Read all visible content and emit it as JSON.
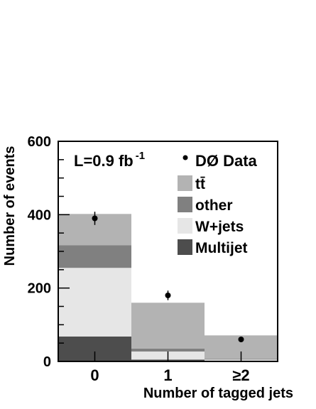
{
  "chart_data": {
    "type": "bar",
    "stacked": true,
    "categories": [
      "0",
      "1",
      "≥2"
    ],
    "xlabel": "Number of tagged jets",
    "ylabel": "Number of events",
    "ylim": [
      0,
      600
    ],
    "yticks": [
      0,
      200,
      400,
      600
    ],
    "series": [
      {
        "name": "Multijet",
        "color": "#4d4d4d",
        "values": [
          68,
          5,
          2
        ]
      },
      {
        "name": "W+jets",
        "color": "#e6e6e6",
        "values": [
          187,
          22,
          3
        ]
      },
      {
        "name": "other",
        "color": "#808080",
        "values": [
          62,
          8,
          2
        ]
      },
      {
        "name": "tt̄",
        "color": "#b3b3b3",
        "values": [
          85,
          125,
          64
        ]
      }
    ],
    "data_points": {
      "name": "DØ Data",
      "values": [
        390,
        180,
        60
      ],
      "errors": [
        18,
        13,
        7
      ]
    },
    "annotation": {
      "text": "L=0.9 fb",
      "superscript": "-1"
    },
    "legend_position": "top-right"
  }
}
